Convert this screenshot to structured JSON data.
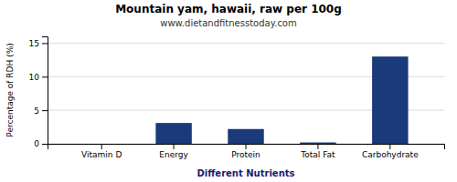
{
  "chart_data": {
    "type": "bar",
    "title": "Mountain yam, hawaii, raw per 100g",
    "subtitle": "www.dietandfitnesstoday.com",
    "xlabel": "Different Nutrients",
    "ylabel": "Percentage of RDH (%)",
    "categories": [
      "Vitamin D",
      "Energy",
      "Protein",
      "Total Fat",
      "Carbohydrate"
    ],
    "values": [
      0.0,
      3.1,
      2.2,
      0.2,
      13.0
    ],
    "color": "#1a3a7a",
    "ylim": [
      0,
      16
    ],
    "yticks": [
      0,
      5,
      10,
      15
    ],
    "grid": true
  }
}
